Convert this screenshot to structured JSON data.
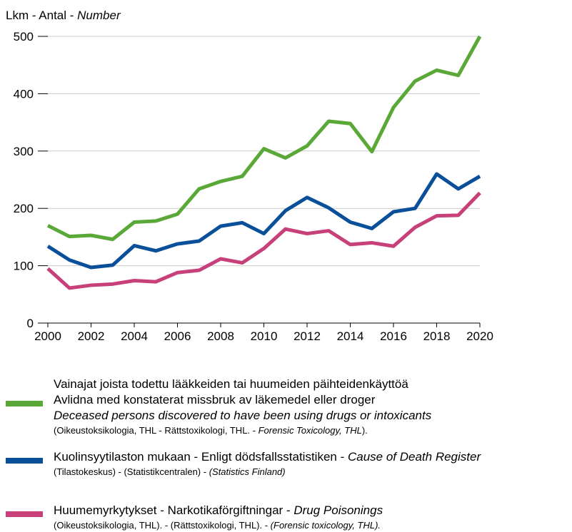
{
  "chart_data": {
    "type": "line",
    "y_label": [
      {
        "text": "Lkm - Antal - "
      },
      {
        "text": "Number",
        "italic": true
      }
    ],
    "x": [
      2000,
      2001,
      2002,
      2003,
      2004,
      2005,
      2006,
      2007,
      2008,
      2009,
      2010,
      2011,
      2012,
      2013,
      2014,
      2015,
      2016,
      2017,
      2018,
      2019,
      2020
    ],
    "xlim": [
      2000,
      2020
    ],
    "xticks": [
      2000,
      2002,
      2004,
      2006,
      2008,
      2010,
      2012,
      2014,
      2016,
      2018,
      2020
    ],
    "ylim": [
      0,
      500
    ],
    "yticks": [
      0,
      100,
      200,
      300,
      400,
      500
    ],
    "grid": true,
    "series": [
      {
        "color": "#5aa837",
        "legend": [
          [
            {
              "text": "Vainajat joista todettu lääkkeiden tai huumeiden päihteidenkäyttöä"
            }
          ],
          [
            {
              "text": "Avlidna med konstaterat missbruk av läkemedel eller droger"
            }
          ],
          [
            {
              "text": "Deceased persons discovered to have been using drugs or intoxicants",
              "italic": true
            }
          ],
          [
            {
              "text": "(Oikeustoksikologia, THL - Rättstoxikologi, THL. - ",
              "small": true
            },
            {
              "text": "Forensic Toxicology, THL",
              "italic": true,
              "small": true
            },
            {
              "text": ").",
              "small": true
            }
          ]
        ],
        "values": [
          170,
          151,
          153,
          146,
          176,
          178,
          190,
          234,
          247,
          256,
          304,
          288,
          309,
          352,
          348,
          299,
          376,
          422,
          441,
          432,
          500
        ]
      },
      {
        "color": "#0a4f9a",
        "legend": [
          [
            {
              "text": "Kuolinsyytilaston mukaan - Enligt dödsfallsstatistiken - "
            },
            {
              "text": "Cause of Death Register",
              "italic": true
            }
          ],
          [
            {
              "text": "(Tilastokeskus) - (Statistikcentralen) - ",
              "small": true
            },
            {
              "text": "(Statistics Finland)",
              "italic": true,
              "small": true
            }
          ]
        ],
        "values": [
          134,
          110,
          97,
          101,
          135,
          126,
          138,
          143,
          169,
          175,
          156,
          196,
          219,
          201,
          176,
          165,
          194,
          200,
          260,
          234,
          256
        ]
      },
      {
        "color": "#c8407a",
        "legend": [
          [
            {
              "text": "Huumemyrkytykset - Narkotikaförgiftningar - "
            },
            {
              "text": "Drug Poisonings",
              "italic": true
            }
          ],
          [
            {
              "text": "(Oikeustoksikologia, THL). - (Rättstoxikologi, THL). - ",
              "small": true
            },
            {
              "text": "(Forensic toxicology, THL).",
              "italic": true,
              "small": true
            }
          ]
        ],
        "values": [
          95,
          61,
          66,
          68,
          74,
          72,
          88,
          92,
          112,
          105,
          130,
          164,
          156,
          161,
          137,
          140,
          134,
          167,
          187,
          188,
          227
        ]
      }
    ]
  }
}
